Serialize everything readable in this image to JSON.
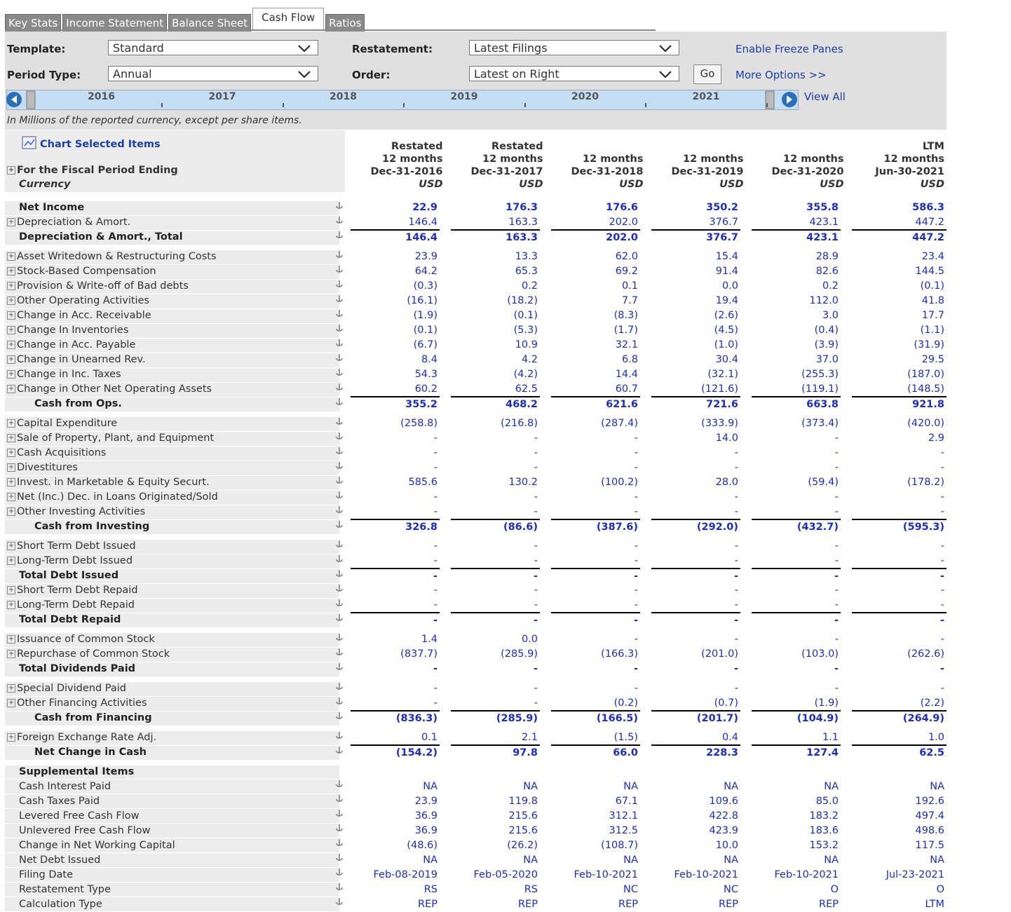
{
  "tabs": [
    "Key Stats",
    "Income Statement",
    "Balance Sheet",
    "Cash Flow",
    "Ratios"
  ],
  "active_tab": 3,
  "controls": {
    "template_label": "Template:",
    "template": "Standard",
    "period_label": "Period Type:",
    "period": "Annual",
    "restatement_label": "Restatement:",
    "restatement": "Latest Filings",
    "order_label": "Order:",
    "order": "Latest on Right",
    "go": "Go",
    "freeze": "Enable Freeze Panes",
    "more": "More Options >>",
    "view_all": "View All"
  },
  "timeline": [
    "2016",
    "2017",
    "2018",
    "2019",
    "2020",
    "2021"
  ],
  "note": "In Millions of the reported currency, except per share items.",
  "chart_link": "Chart Selected Items",
  "header": {
    "period_label": "For the Fiscal Period Ending",
    "currency_label": "Currency",
    "columns": [
      [
        "Restated",
        "12 months",
        "Dec-31-2016",
        "USD"
      ],
      [
        "Restated",
        "12 months",
        "Dec-31-2017",
        "USD"
      ],
      [
        "12 months",
        "Dec-31-2018",
        "USD"
      ],
      [
        "12 months",
        "Dec-31-2019",
        "USD"
      ],
      [
        "12 months",
        "Dec-31-2020",
        "USD"
      ],
      [
        "LTM",
        "12 months",
        "Jun-30-2021",
        "USD"
      ]
    ]
  },
  "sections": [
    {
      "rows": [
        {
          "label": "Net Income",
          "bold": true,
          "values": [
            "22.9",
            "176.3",
            "176.6",
            "350.2",
            "355.8",
            "586.3"
          ]
        },
        {
          "label": "Depreciation & Amort.",
          "expand": true,
          "values": [
            "146.4",
            "163.3",
            "202.0",
            "376.7",
            "423.1",
            "447.2"
          ]
        },
        {
          "label": "Depreciation & Amort., Total",
          "bold": true,
          "total": true,
          "values": [
            "146.4",
            "163.3",
            "202.0",
            "376.7",
            "423.1",
            "447.2"
          ]
        }
      ]
    },
    {
      "rows": [
        {
          "label": "Asset Writedown & Restructuring Costs",
          "expand": true,
          "values": [
            "23.9",
            "13.3",
            "62.0",
            "15.4",
            "28.9",
            "23.4"
          ]
        },
        {
          "label": "Stock-Based Compensation",
          "expand": true,
          "values": [
            "64.2",
            "65.3",
            "69.2",
            "91.4",
            "82.6",
            "144.5"
          ]
        },
        {
          "label": "Provision & Write-off of Bad debts",
          "expand": true,
          "values": [
            "(0.3)",
            "0.2",
            "0.1",
            "0.0",
            "0.2",
            "(0.1)"
          ]
        },
        {
          "label": "Other Operating Activities",
          "expand": true,
          "values": [
            "(16.1)",
            "(18.2)",
            "7.7",
            "19.4",
            "112.0",
            "41.8"
          ]
        },
        {
          "label": "Change in Acc. Receivable",
          "expand": true,
          "values": [
            "(1.9)",
            "(0.1)",
            "(8.3)",
            "(2.6)",
            "3.0",
            "17.7"
          ]
        },
        {
          "label": "Change In Inventories",
          "expand": true,
          "values": [
            "(0.1)",
            "(5.3)",
            "(1.7)",
            "(4.5)",
            "(0.4)",
            "(1.1)"
          ]
        },
        {
          "label": "Change in Acc. Payable",
          "expand": true,
          "values": [
            "(6.7)",
            "10.9",
            "32.1",
            "(1.0)",
            "(3.9)",
            "(31.9)"
          ]
        },
        {
          "label": "Change in Unearned Rev.",
          "expand": true,
          "values": [
            "8.4",
            "4.2",
            "6.8",
            "30.4",
            "37.0",
            "29.5"
          ]
        },
        {
          "label": "Change in Inc. Taxes",
          "expand": true,
          "values": [
            "54.3",
            "(4.2)",
            "14.4",
            "(32.1)",
            "(255.3)",
            "(187.0)"
          ]
        },
        {
          "label": "Change in Other Net Operating Assets",
          "expand": true,
          "values": [
            "60.2",
            "62.5",
            "60.7",
            "(121.6)",
            "(119.1)",
            "(148.5)"
          ]
        },
        {
          "label": "Cash from Ops.",
          "bold": true,
          "total": true,
          "indent": true,
          "values": [
            "355.2",
            "468.2",
            "621.6",
            "721.6",
            "663.8",
            "921.8"
          ]
        }
      ]
    },
    {
      "rows": [
        {
          "label": "Capital Expenditure",
          "expand": true,
          "values": [
            "(258.8)",
            "(216.8)",
            "(287.4)",
            "(333.9)",
            "(373.4)",
            "(420.0)"
          ]
        },
        {
          "label": "Sale of Property, Plant, and Equipment",
          "expand": true,
          "values": [
            "-",
            "-",
            "-",
            "14.0",
            "-",
            "2.9"
          ]
        },
        {
          "label": "Cash Acquisitions",
          "expand": true,
          "values": [
            "-",
            "-",
            "-",
            "-",
            "-",
            "-"
          ]
        },
        {
          "label": "Divestitures",
          "expand": true,
          "values": [
            "-",
            "-",
            "-",
            "-",
            "-",
            "-"
          ]
        },
        {
          "label": "Invest. in Marketable & Equity Securt.",
          "expand": true,
          "values": [
            "585.6",
            "130.2",
            "(100.2)",
            "28.0",
            "(59.4)",
            "(178.2)"
          ]
        },
        {
          "label": "Net (Inc.) Dec. in Loans Originated/Sold",
          "expand": true,
          "values": [
            "-",
            "-",
            "-",
            "-",
            "-",
            "-"
          ]
        },
        {
          "label": "Other Investing Activities",
          "expand": true,
          "values": [
            "-",
            "-",
            "-",
            "-",
            "-",
            "-"
          ]
        },
        {
          "label": "Cash from Investing",
          "bold": true,
          "total": true,
          "indent": true,
          "values": [
            "326.8",
            "(86.6)",
            "(387.6)",
            "(292.0)",
            "(432.7)",
            "(595.3)"
          ]
        }
      ]
    },
    {
      "rows": [
        {
          "label": "Short Term Debt Issued",
          "expand": true,
          "values": [
            "-",
            "-",
            "-",
            "-",
            "-",
            "-"
          ]
        },
        {
          "label": "Long-Term Debt Issued",
          "expand": true,
          "values": [
            "-",
            "-",
            "-",
            "-",
            "-",
            "-"
          ]
        },
        {
          "label": "Total Debt Issued",
          "bold": true,
          "total": true,
          "values": [
            "-",
            "-",
            "-",
            "-",
            "-",
            "-"
          ]
        },
        {
          "label": "Short Term Debt Repaid",
          "expand": true,
          "values": [
            "-",
            "-",
            "-",
            "-",
            "-",
            "-"
          ]
        },
        {
          "label": "Long-Term Debt Repaid",
          "expand": true,
          "values": [
            "-",
            "-",
            "-",
            "-",
            "-",
            "-"
          ]
        },
        {
          "label": "Total Debt Repaid",
          "bold": true,
          "total": true,
          "values": [
            "-",
            "-",
            "-",
            "-",
            "-",
            "-"
          ]
        }
      ]
    },
    {
      "rows": [
        {
          "label": "Issuance of Common Stock",
          "expand": true,
          "values": [
            "1.4",
            "0.0",
            "-",
            "-",
            "-",
            "-"
          ]
        },
        {
          "label": "Repurchase of Common Stock",
          "expand": true,
          "values": [
            "(837.7)",
            "(285.9)",
            "(166.3)",
            "(201.0)",
            "(103.0)",
            "(262.6)"
          ]
        },
        {
          "label": "Total Dividends Paid",
          "bold": true,
          "values": [
            "-",
            "-",
            "-",
            "-",
            "-",
            "-"
          ]
        }
      ]
    },
    {
      "rows": [
        {
          "label": "Special Dividend Paid",
          "expand": true,
          "values": [
            "-",
            "-",
            "-",
            "-",
            "-",
            "-"
          ]
        },
        {
          "label": "Other Financing Activities",
          "expand": true,
          "values": [
            "-",
            "-",
            "(0.2)",
            "(0.7)",
            "(1.9)",
            "(2.2)"
          ]
        },
        {
          "label": "Cash from Financing",
          "bold": true,
          "total": true,
          "indent": true,
          "values": [
            "(836.3)",
            "(285.9)",
            "(166.5)",
            "(201.7)",
            "(104.9)",
            "(264.9)"
          ]
        }
      ]
    },
    {
      "rows": [
        {
          "label": "Foreign Exchange Rate Adj.",
          "expand": true,
          "values": [
            "0.1",
            "2.1",
            "(1.5)",
            "0.4",
            "1.1",
            "1.0"
          ]
        },
        {
          "label": "Net Change in Cash",
          "bold": true,
          "total": true,
          "indent": true,
          "values": [
            "(154.2)",
            "97.8",
            "66.0",
            "228.3",
            "127.4",
            "62.5"
          ]
        }
      ]
    },
    {
      "rows": [
        {
          "label": "Supplemental Items",
          "bold": true,
          "values": []
        },
        {
          "label": "Cash Interest Paid",
          "values": [
            "NA",
            "NA",
            "NA",
            "NA",
            "NA",
            "NA"
          ]
        },
        {
          "label": "Cash Taxes Paid",
          "values": [
            "23.9",
            "119.8",
            "67.1",
            "109.6",
            "85.0",
            "192.6"
          ]
        },
        {
          "label": "Levered Free Cash Flow",
          "values": [
            "36.9",
            "215.6",
            "312.1",
            "422.8",
            "183.2",
            "497.4"
          ]
        },
        {
          "label": "Unlevered Free Cash Flow",
          "values": [
            "36.9",
            "215.6",
            "312.5",
            "423.9",
            "183.6",
            "498.6"
          ]
        },
        {
          "label": "Change in Net Working Capital",
          "values": [
            "(48.6)",
            "(26.2)",
            "(108.7)",
            "10.0",
            "153.2",
            "117.5"
          ]
        },
        {
          "label": "Net Debt Issued",
          "values": [
            "NA",
            "NA",
            "NA",
            "NA",
            "NA",
            "NA"
          ]
        },
        {
          "label": "Filing Date",
          "values": [
            "Feb-08-2019",
            "Feb-05-2020",
            "Feb-10-2021",
            "Feb-10-2021",
            "Feb-10-2021",
            "Jul-23-2021"
          ]
        },
        {
          "label": "Restatement Type",
          "values": [
            "RS",
            "RS",
            "NC",
            "NC",
            "O",
            "O"
          ]
        },
        {
          "label": "Calculation Type",
          "values": [
            "REP",
            "REP",
            "REP",
            "REP",
            "REP",
            "LTM"
          ]
        }
      ]
    }
  ]
}
